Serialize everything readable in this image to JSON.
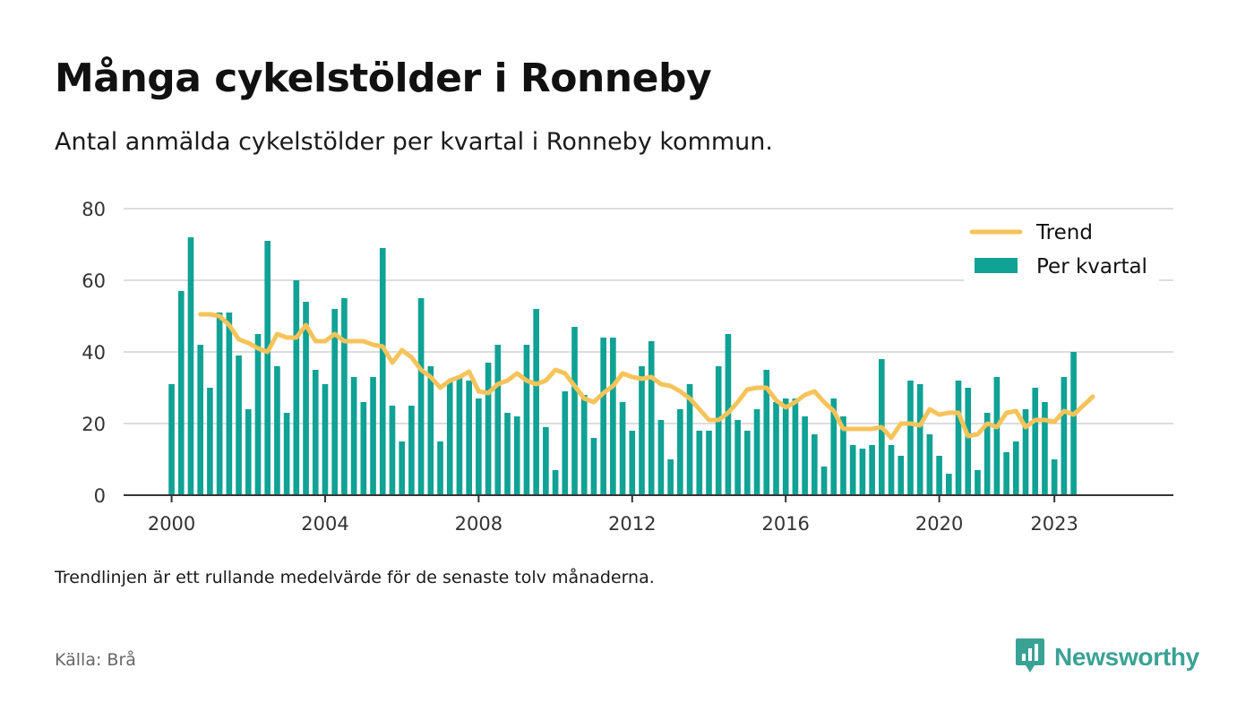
{
  "title": "Många cykelstölder i Ronneby",
  "subtitle": "Antal anmälda cykelstölder per kvartal i Ronneby kommun.",
  "note": "Trendlinjen är ett rullande medelvärde för de senaste tolv månaderna.",
  "source": "Källa: Brå",
  "brand": {
    "name": "Newsworthy",
    "icon": "newsworthy-logo-icon",
    "color": "#3aa294"
  },
  "colors": {
    "bars": "#0fa295",
    "trend": "#f6c35a",
    "grid": "#dddddd",
    "axis": "#333333"
  },
  "chart_data": {
    "type": "bar",
    "title": "Många cykelstölder i Ronneby",
    "ylim": [
      0,
      80
    ],
    "yticks": [
      0,
      20,
      40,
      60,
      80
    ],
    "xticks": [
      {
        "label": "2000",
        "x": 2000.0
      },
      {
        "label": "2004",
        "x": 2004.0
      },
      {
        "label": "2008",
        "x": 2008.0
      },
      {
        "label": "2012",
        "x": 2012.0
      },
      {
        "label": "2016",
        "x": 2016.0
      },
      {
        "label": "2020",
        "x": 2020.0
      },
      {
        "label": "2023",
        "x": 2023.0
      }
    ],
    "xlim": [
      1998.75,
      2026.1
    ],
    "grid": true,
    "legend": "top-right",
    "series": [
      {
        "name": "Per kvartal",
        "kind": "bar",
        "start": "2000 Q1",
        "values": [
          31,
          57,
          72,
          42,
          30,
          51,
          51,
          39,
          24,
          45,
          71,
          36,
          23,
          60,
          54,
          35,
          31,
          52,
          55,
          33,
          26,
          33,
          69,
          25,
          15,
          25,
          55,
          36,
          15,
          32,
          33,
          32,
          27,
          37,
          42,
          23,
          22,
          42,
          52,
          19,
          7,
          29,
          47,
          28,
          16,
          44,
          44,
          26,
          18,
          36,
          43,
          21,
          10,
          24,
          31,
          18,
          18,
          36,
          45,
          21,
          18,
          24,
          35,
          26,
          27,
          27,
          22,
          17,
          8,
          27,
          22,
          14,
          13,
          14,
          38,
          14,
          11,
          32,
          31,
          17,
          11,
          6,
          32,
          30,
          7,
          23,
          33,
          12,
          15,
          24,
          30,
          26,
          10,
          33,
          40
        ]
      },
      {
        "name": "Trend",
        "kind": "line",
        "start": "2000 Q4",
        "values": [
          50.5,
          50.5,
          50,
          47.5,
          43.5,
          42.5,
          41,
          40,
          45,
          44,
          44,
          47.5,
          43,
          43,
          45,
          43,
          43,
          43,
          42,
          41.5,
          37,
          40.5,
          38.5,
          35,
          33,
          30,
          32,
          33,
          34.5,
          29,
          28.5,
          31,
          32,
          34,
          32,
          31,
          32,
          35,
          34,
          30.5,
          27,
          26,
          28.5,
          30.5,
          34,
          33,
          32.5,
          33,
          31,
          30.5,
          29,
          27,
          24,
          21,
          21,
          23,
          26,
          29.5,
          30,
          30,
          26.5,
          24.5,
          26,
          28,
          29,
          26,
          23.5,
          18.5,
          18.5,
          18.5,
          18.5,
          19,
          16,
          20,
          20,
          19.5,
          24,
          22.5,
          23,
          23,
          16.5,
          17,
          20,
          19,
          23,
          23.5,
          19,
          21,
          21,
          20.5,
          23.5,
          22.5,
          25,
          27.5
        ]
      }
    ]
  }
}
